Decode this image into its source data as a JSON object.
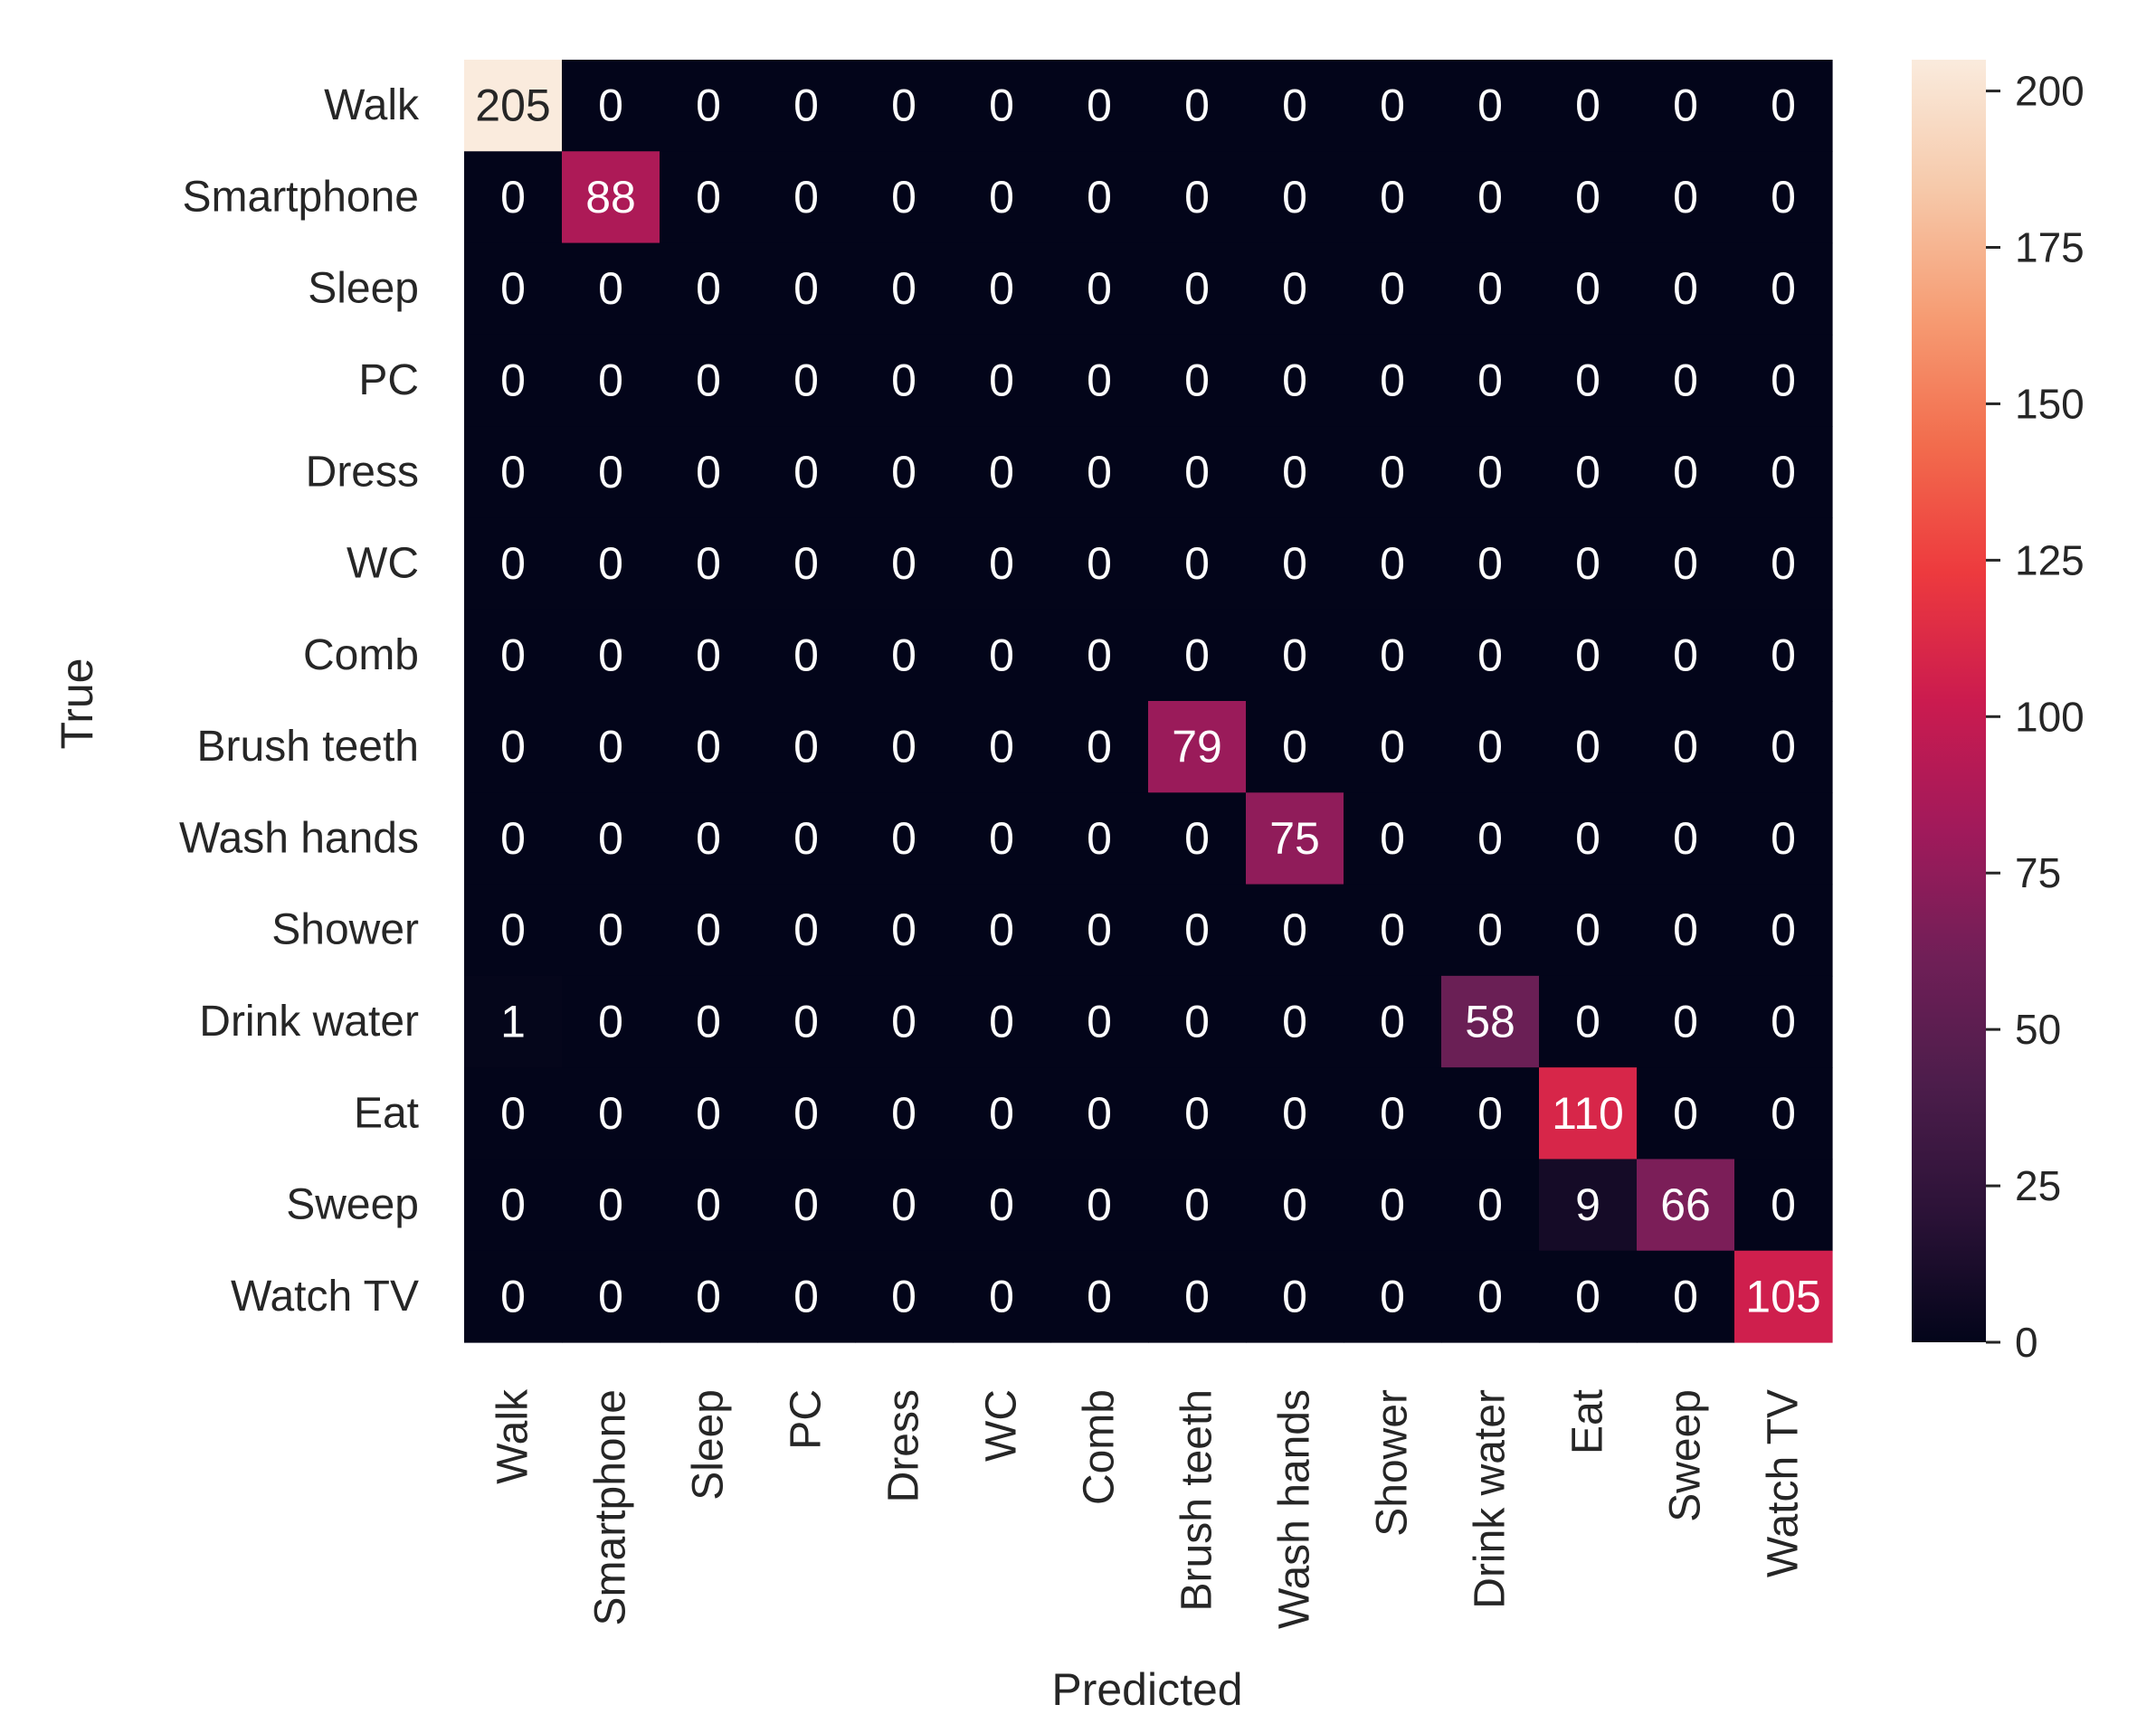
{
  "chart_data": {
    "type": "heatmap",
    "title": "",
    "xlabel": "Predicted",
    "ylabel": "True",
    "row_labels": [
      "Walk",
      "Smartphone",
      "Sleep",
      "PC",
      "Dress",
      "WC",
      "Comb",
      "Brush teeth",
      "Wash hands",
      "Shower",
      "Drink water",
      "Eat",
      "Sweep",
      "Watch TV"
    ],
    "col_labels": [
      "Walk",
      "Smartphone",
      "Sleep",
      "PC",
      "Dress",
      "WC",
      "Comb",
      "Brush teeth",
      "Wash hands",
      "Shower",
      "Drink water",
      "Eat",
      "Sweep",
      "Watch TV"
    ],
    "matrix": [
      [
        205,
        0,
        0,
        0,
        0,
        0,
        0,
        0,
        0,
        0,
        0,
        0,
        0,
        0
      ],
      [
        0,
        88,
        0,
        0,
        0,
        0,
        0,
        0,
        0,
        0,
        0,
        0,
        0,
        0
      ],
      [
        0,
        0,
        0,
        0,
        0,
        0,
        0,
        0,
        0,
        0,
        0,
        0,
        0,
        0
      ],
      [
        0,
        0,
        0,
        0,
        0,
        0,
        0,
        0,
        0,
        0,
        0,
        0,
        0,
        0
      ],
      [
        0,
        0,
        0,
        0,
        0,
        0,
        0,
        0,
        0,
        0,
        0,
        0,
        0,
        0
      ],
      [
        0,
        0,
        0,
        0,
        0,
        0,
        0,
        0,
        0,
        0,
        0,
        0,
        0,
        0
      ],
      [
        0,
        0,
        0,
        0,
        0,
        0,
        0,
        0,
        0,
        0,
        0,
        0,
        0,
        0
      ],
      [
        0,
        0,
        0,
        0,
        0,
        0,
        0,
        79,
        0,
        0,
        0,
        0,
        0,
        0
      ],
      [
        0,
        0,
        0,
        0,
        0,
        0,
        0,
        0,
        75,
        0,
        0,
        0,
        0,
        0
      ],
      [
        0,
        0,
        0,
        0,
        0,
        0,
        0,
        0,
        0,
        0,
        0,
        0,
        0,
        0
      ],
      [
        1,
        0,
        0,
        0,
        0,
        0,
        0,
        0,
        0,
        0,
        58,
        0,
        0,
        0
      ],
      [
        0,
        0,
        0,
        0,
        0,
        0,
        0,
        0,
        0,
        0,
        0,
        110,
        0,
        0
      ],
      [
        0,
        0,
        0,
        0,
        0,
        0,
        0,
        0,
        0,
        0,
        0,
        9,
        66,
        0
      ],
      [
        0,
        0,
        0,
        0,
        0,
        0,
        0,
        0,
        0,
        0,
        0,
        0,
        0,
        105
      ]
    ],
    "vmin": 0,
    "vmax": 205,
    "colorbar_ticks": [
      0,
      25,
      50,
      75,
      100,
      125,
      150,
      175,
      200
    ],
    "colormap": "rocket",
    "colormap_stops": [
      "#03051a",
      "#2b1237",
      "#4c1d4b",
      "#701f57",
      "#a11a5b",
      "#cb1b4f",
      "#ed3a3e",
      "#f26c4d",
      "#f69c73",
      "#f6c9aa",
      "#faebdd"
    ],
    "text_light": "#ffffff",
    "text_dark": "#262626"
  }
}
